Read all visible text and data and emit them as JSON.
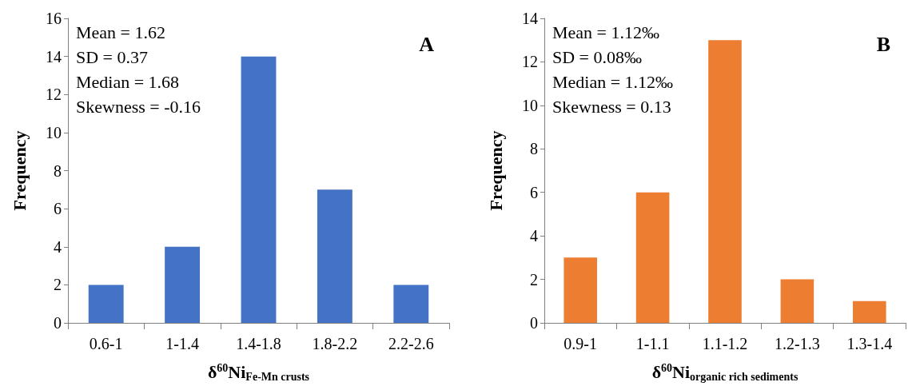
{
  "chart_data": [
    {
      "type": "bar",
      "title": "A",
      "xlabel": "δ$^{60}$Ni$_{Fe-Mn crusts}$",
      "ylabel": "Frequency",
      "categories": [
        "0.6-1",
        "1-1.4",
        "1.4-1.8",
        "1.8-2.2",
        "2.2-2.6"
      ],
      "values": [
        2,
        4,
        14,
        7,
        2
      ],
      "color": "#4472c4",
      "ylim": [
        0,
        16
      ],
      "yticks": [
        0,
        2,
        4,
        6,
        8,
        10,
        12,
        14,
        16
      ],
      "grid": false,
      "annotations": [
        "Mean = 1.62",
        "SD = 0.37",
        "Median = 1.68",
        "Skewness = -0.16"
      ]
    },
    {
      "type": "bar",
      "title": "B",
      "xlabel": "δ$^{60}$Ni$_{organic rich sediments}$",
      "ylabel": "Frequency",
      "categories": [
        "0.9-1",
        "1-1.1",
        "1.1-1.2",
        "1.2-1.3",
        "1.3-1.4"
      ],
      "values": [
        3,
        6,
        13,
        2,
        1
      ],
      "color": "#ed7d31",
      "ylim": [
        0,
        14
      ],
      "yticks": [
        0,
        2,
        4,
        6,
        8,
        10,
        12,
        14
      ],
      "grid": false,
      "annotations": [
        "Mean = 1.12‰",
        "SD = 0.08‰",
        "Median = 1.12‰",
        "Skewness = 0.13"
      ]
    }
  ]
}
